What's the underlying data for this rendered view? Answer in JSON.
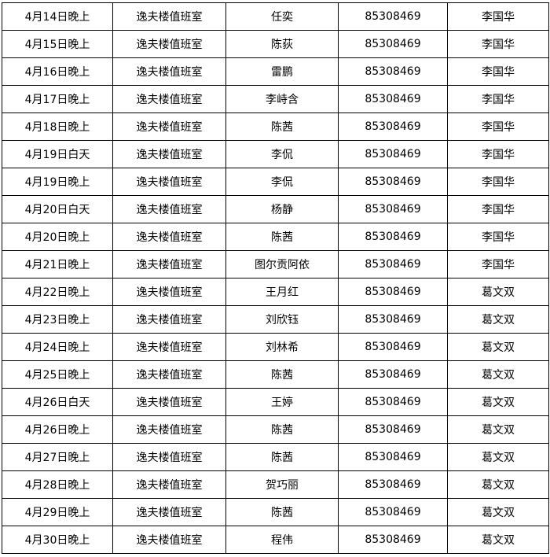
{
  "rows": [
    [
      "4月14日晚上",
      "逸夫楼值班室",
      "任奕",
      "85308469",
      "李国华"
    ],
    [
      "4月15日晚上",
      "逸夫楼值班室",
      "陈荻",
      "85308469",
      "李国华"
    ],
    [
      "4月16日晚上",
      "逸夫楼值班室",
      "雷鹏",
      "85308469",
      "李国华"
    ],
    [
      "4月17日晚上",
      "逸夫楼值班室",
      "李峙含",
      "85308469",
      "李国华"
    ],
    [
      "4月18日晚上",
      "逸夫楼值班室",
      "陈茜",
      "85308469",
      "李国华"
    ],
    [
      "4月19日白天",
      "逸夫楼值班室",
      "李侃",
      "85308469",
      "李国华"
    ],
    [
      "4月19日晚上",
      "逸夫楼值班室",
      "李侃",
      "85308469",
      "李国华"
    ],
    [
      "4月20日白天",
      "逸夫楼值班室",
      "杨静",
      "85308469",
      "李国华"
    ],
    [
      "4月20日晚上",
      "逸夫楼值班室",
      "陈茜",
      "85308469",
      "李国华"
    ],
    [
      "4月21日晚上",
      "逸夫楼值班室",
      "图尔贡阿依",
      "85308469",
      "李国华"
    ],
    [
      "4月22日晚上",
      "逸夫楼值班室",
      "王月红",
      "85308469",
      "葛文双"
    ],
    [
      "4月23日晚上",
      "逸夫楼值班室",
      "刘欣钰",
      "85308469",
      "葛文双"
    ],
    [
      "4月24日晚上",
      "逸夫楼值班室",
      "刘林希",
      "85308469",
      "葛文双"
    ],
    [
      "4月25日晚上",
      "逸夫楼值班室",
      "陈茜",
      "85308469",
      "葛文双"
    ],
    [
      "4月26日白天",
      "逸夫楼值班室",
      "王婷",
      "85308469",
      "葛文双"
    ],
    [
      "4月26日晚上",
      "逸夫楼值班室",
      "陈茜",
      "85308469",
      "葛文双"
    ],
    [
      "4月27日晚上",
      "逸夫楼值班室",
      "陈茜",
      "85308469",
      "葛文双"
    ],
    [
      "4月28日晚上",
      "逸夫楼值班室",
      "贺巧丽",
      "85308469",
      "葛文双"
    ],
    [
      "4月29日晚上",
      "逸夫楼值班室",
      "陈茜",
      "85308469",
      "葛文双"
    ],
    [
      "4月30日晚上",
      "逸夫楼值班室",
      "程伟",
      "85308469",
      "葛文双"
    ]
  ]
}
